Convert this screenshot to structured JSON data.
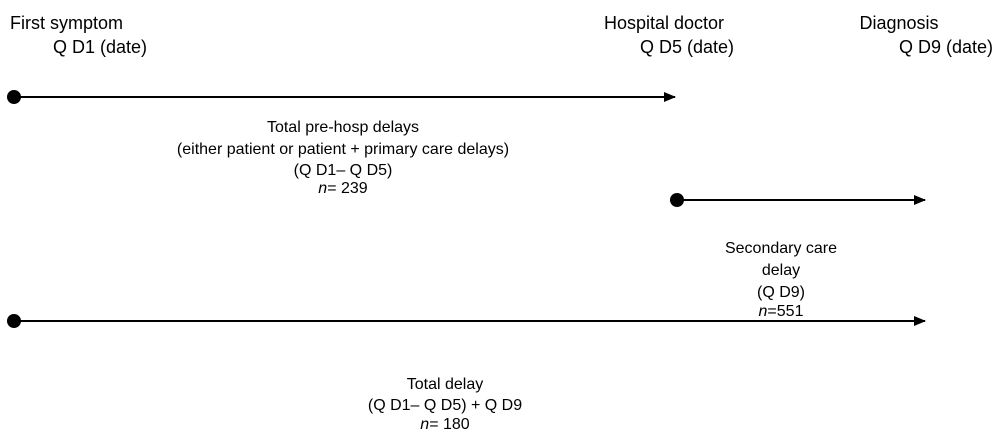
{
  "nodes": [
    {
      "label": "First symptom",
      "sublabel": "Q D1 (date)"
    },
    {
      "label": "Hospital doctor",
      "sublabel": "Q D5 (date)"
    },
    {
      "label": "Diagnosis",
      "sublabel": "Q D9 (date)"
    }
  ],
  "arrows": [
    {
      "lines": [
        "Total pre-hosp delays",
        "(either patient or patient + primary care delays)",
        "(Q D1– Q D5)"
      ],
      "n_symbol": "n",
      "n_value": "= 239"
    },
    {
      "lines": [
        "Secondary care",
        "delay",
        "(Q D9)"
      ],
      "n_symbol": "n",
      "n_value": "=551"
    },
    {
      "lines": [
        "Total delay",
        "(Q D1– Q D5) + Q D9"
      ],
      "n_symbol": "n",
      "n_value": "= 180"
    }
  ]
}
